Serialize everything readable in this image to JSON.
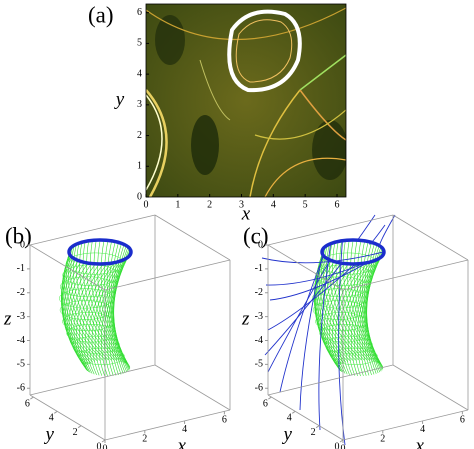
{
  "chart_data": [
    {
      "type": "field",
      "label": "(a)",
      "x_label": "x",
      "y_label": "y",
      "xlim": [
        0,
        6.283
      ],
      "ylim": [
        0,
        6.283
      ],
      "xticks": [
        0,
        1,
        2,
        3,
        4,
        5,
        6
      ],
      "yticks": [
        0,
        1,
        2,
        3,
        4,
        5,
        6
      ]
    },
    {
      "type": "surface3d",
      "label": "(b)",
      "x_label": "x",
      "y_label": "y",
      "z_label": "z",
      "xlim": [
        0,
        6.283
      ],
      "ylim": [
        0,
        6.283
      ],
      "zlim": [
        -6.283,
        0
      ],
      "xticks": [
        0,
        2,
        4,
        6
      ],
      "yticks": [
        0,
        2,
        4,
        6
      ],
      "zticks": [
        0,
        -1,
        -2,
        -3,
        -4,
        -5,
        -6
      ]
    },
    {
      "type": "surface3d",
      "label": "(c)",
      "x_label": "x",
      "y_label": "y",
      "z_label": "z",
      "xlim": [
        0,
        6.283
      ],
      "ylim": [
        0,
        6.283
      ],
      "zlim": [
        -6.283,
        0
      ],
      "xticks": [
        0,
        2,
        4,
        6
      ],
      "yticks": [
        0,
        2,
        4,
        6
      ],
      "zticks": [
        0,
        -1,
        -2,
        -3,
        -4,
        -5,
        -6
      ]
    }
  ]
}
